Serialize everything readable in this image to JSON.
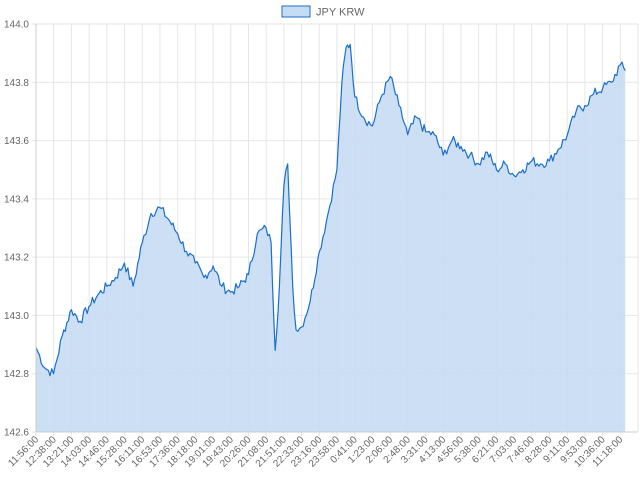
{
  "chart_data": {
    "type": "area",
    "title": "",
    "xlabel": "",
    "ylabel": "",
    "legend": {
      "position": "top",
      "entries": [
        "JPY KRW"
      ]
    },
    "grid": true,
    "ylim": [
      142.6,
      144.0
    ],
    "y_ticks": [
      "142.6",
      "142.8",
      "143.0",
      "143.2",
      "143.4",
      "143.6",
      "143.8",
      "144.0"
    ],
    "x_tick_labels": [
      "11:56:00",
      "12:38:00",
      "13:21:00",
      "14:03:00",
      "14:46:00",
      "15:28:00",
      "16:11:00",
      "16:53:00",
      "17:36:00",
      "18:18:00",
      "19:01:00",
      "19:43:00",
      "20:26:00",
      "21:08:00",
      "21:51:00",
      "22:33:00",
      "23:16:00",
      "23:58:00",
      "0:41:00",
      "1:23:00",
      "2:06:00",
      "2:48:00",
      "3:31:00",
      "4:13:00",
      "4:56:00",
      "5:38:00",
      "6:21:00",
      "7:03:00",
      "7:46:00",
      "8:28:00",
      "9:11:00",
      "9:53:00",
      "10:36:00",
      "11:18:00"
    ],
    "colors": {
      "line": "#1a6fc9",
      "fill": "#c6dcf3",
      "grid": "#e6e6e6",
      "axis": "#cccccc"
    },
    "series": [
      {
        "name": "JPY KRW",
        "x": [
          "11:56:00",
          "12:17:00",
          "12:38:00",
          "12:59:00",
          "13:21:00",
          "13:42:00",
          "14:03:00",
          "14:24:00",
          "14:46:00",
          "15:07:00",
          "15:28:00",
          "15:49:00",
          "16:11:00",
          "16:32:00",
          "16:53:00",
          "17:14:00",
          "17:36:00",
          "17:57:00",
          "18:18:00",
          "18:39:00",
          "19:01:00",
          "19:22:00",
          "19:43:00",
          "20:04:00",
          "20:26:00",
          "20:47:00",
          "21:08:00",
          "21:20:00",
          "21:30:00",
          "21:40:00",
          "21:51:00",
          "22:00:00",
          "22:12:00",
          "22:20:00",
          "22:33:00",
          "22:54:00",
          "23:16:00",
          "23:37:00",
          "23:58:00",
          "0:10:00",
          "0:20:00",
          "0:30:00",
          "0:41:00",
          "1:02:00",
          "1:23:00",
          "1:44:00",
          "2:06:00",
          "2:27:00",
          "2:48:00",
          "3:09:00",
          "3:31:00",
          "3:52:00",
          "4:13:00",
          "4:34:00",
          "4:56:00",
          "5:17:00",
          "5:38:00",
          "5:59:00",
          "6:21:00",
          "6:42:00",
          "7:03:00",
          "7:24:00",
          "7:46:00",
          "8:07:00",
          "8:28:00",
          "8:49:00",
          "9:11:00",
          "9:32:00",
          "9:53:00",
          "10:14:00",
          "10:36:00",
          "10:57:00",
          "11:18:00",
          "11:30:00"
        ],
        "values": [
          142.89,
          142.82,
          142.8,
          142.93,
          143.02,
          142.98,
          143.03,
          143.07,
          143.1,
          143.13,
          143.18,
          143.1,
          143.25,
          143.35,
          143.37,
          143.33,
          143.28,
          143.22,
          143.18,
          143.13,
          143.17,
          143.1,
          143.08,
          143.1,
          143.14,
          143.28,
          143.3,
          143.25,
          142.88,
          143.1,
          143.45,
          143.52,
          143.1,
          142.95,
          142.96,
          143.05,
          143.22,
          143.35,
          143.5,
          143.8,
          143.92,
          143.93,
          143.75,
          143.68,
          143.65,
          143.75,
          143.82,
          143.72,
          143.62,
          143.68,
          143.63,
          143.62,
          143.55,
          143.6,
          143.58,
          143.55,
          143.52,
          143.56,
          143.5,
          143.52,
          143.48,
          143.5,
          143.53,
          143.52,
          143.53,
          143.57,
          143.62,
          143.7,
          143.72,
          143.76,
          143.78,
          143.8,
          143.86,
          143.84
        ]
      }
    ]
  }
}
